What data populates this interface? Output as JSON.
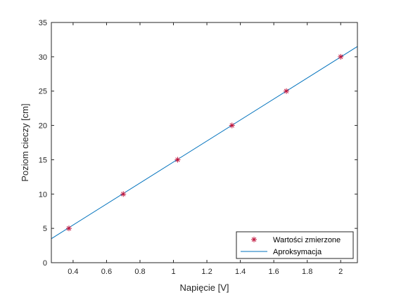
{
  "chart_data": {
    "type": "scatter",
    "xlabel": "Napięcie [V]",
    "ylabel": "Poziom cieczy [cm]",
    "xlim": [
      0.27,
      2.1
    ],
    "ylim": [
      0,
      35
    ],
    "xticks": [
      0.4,
      0.6,
      0.8,
      1,
      1.2,
      1.4,
      1.6,
      1.8,
      2
    ],
    "xtick_labels": [
      "0.4",
      "0.6",
      "0.8",
      "1",
      "1.2",
      "1.4",
      "1.6",
      "1.8",
      "2"
    ],
    "yticks": [
      0,
      5,
      10,
      15,
      20,
      25,
      30,
      35
    ],
    "ytick_labels": [
      "0",
      "5",
      "10",
      "15",
      "20",
      "25",
      "30",
      "35"
    ],
    "grid": false,
    "legend_position": "bottom-right",
    "series": [
      {
        "name": "Wartości zmierzone",
        "type": "scatter",
        "marker": "asterisk",
        "color": "#c0143c",
        "x": [
          0.375,
          0.7,
          1.025,
          1.35,
          1.675,
          2.0
        ],
        "y": [
          5,
          10,
          15,
          20,
          25,
          30
        ]
      },
      {
        "name": "Aproksymacja",
        "type": "line",
        "color": "#0072bd",
        "x": [
          0.27,
          2.1
        ],
        "y": [
          3.5,
          31.5
        ]
      }
    ]
  }
}
